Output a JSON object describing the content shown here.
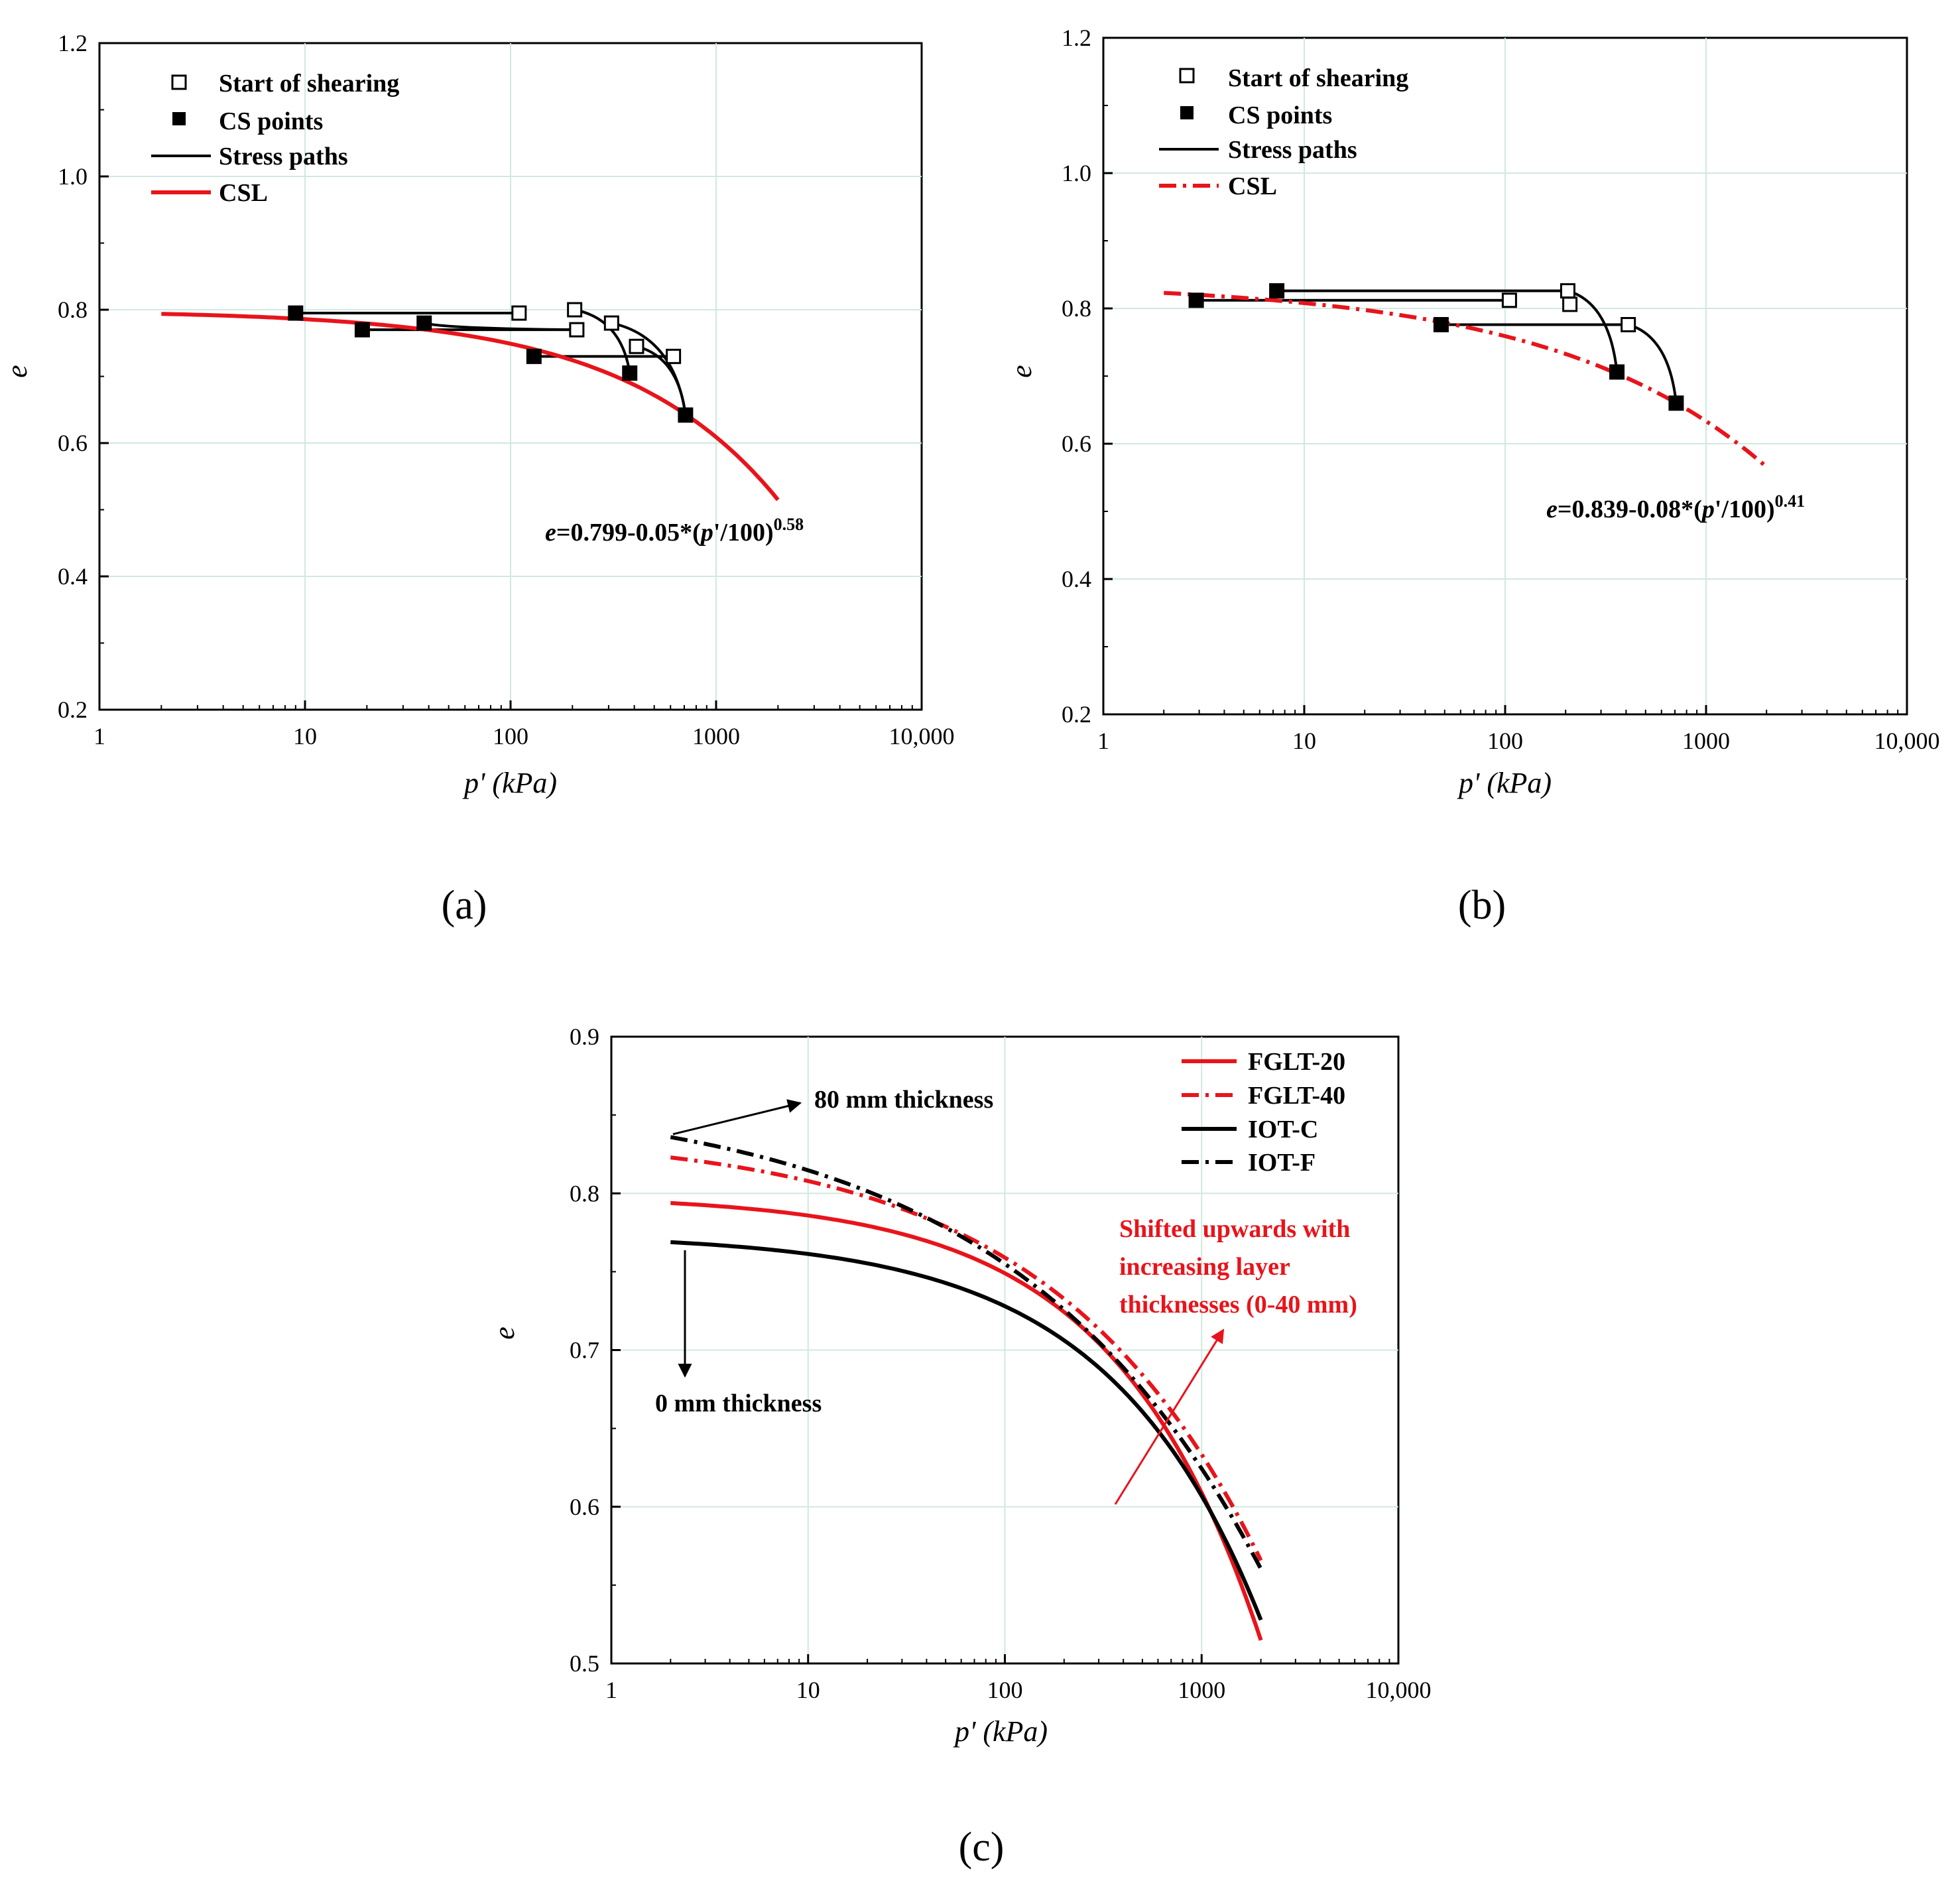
{
  "panels": [
    {
      "id": "a",
      "label": "(a)",
      "x_axis": {
        "label": "p' (kPa)",
        "scale": "log",
        "range": [
          1,
          10000
        ],
        "ticks": [
          1,
          10,
          100,
          1000,
          10000
        ],
        "tick_labels": [
          "1",
          "10",
          "100",
          "1000",
          "10,000"
        ]
      },
      "y_axis": {
        "label": "e",
        "range": [
          0.2,
          1.2
        ],
        "ticks": [
          0.2,
          0.4,
          0.6,
          0.8,
          1.0,
          1.2
        ],
        "tick_labels": [
          "0.2",
          "0.4",
          "0.6",
          "0.8",
          "1.0",
          "1.2"
        ]
      },
      "legend": [
        "Start of shearing",
        "CS points",
        "Stress paths",
        "CSL"
      ],
      "equation": {
        "prefix": "e",
        "body": "=0.799-0.05*(",
        "var": "p",
        "suffix": "'/100)",
        "exponent": "0.58"
      },
      "start_points": [
        [
          110,
          0.795
        ],
        [
          205,
          0.8
        ],
        [
          210,
          0.77
        ],
        [
          310,
          0.78
        ],
        [
          410,
          0.745
        ],
        [
          620,
          0.73
        ]
      ],
      "cs_points": [
        [
          9,
          0.795
        ],
        [
          19,
          0.77
        ],
        [
          38,
          0.78
        ],
        [
          130,
          0.73
        ],
        [
          380,
          0.705
        ],
        [
          710,
          0.642
        ]
      ],
      "csl": {
        "a": 0.799,
        "b": 0.05,
        "n": 0.58,
        "x_range": [
          2,
          2000
        ],
        "color": "#e8141b",
        "style": "solid"
      }
    },
    {
      "id": "b",
      "label": "(b)",
      "x_axis": {
        "label": "p' (kPa)",
        "scale": "log",
        "range": [
          1,
          10000
        ],
        "ticks": [
          1,
          10,
          100,
          1000,
          10000
        ],
        "tick_labels": [
          "1",
          "10",
          "100",
          "1000",
          "10,000"
        ]
      },
      "y_axis": {
        "label": "e",
        "range": [
          0.2,
          1.2
        ],
        "ticks": [
          0.2,
          0.4,
          0.6,
          0.8,
          1.0,
          1.2
        ],
        "tick_labels": [
          "0.2",
          "0.4",
          "0.6",
          "0.8",
          "1.0",
          "1.2"
        ]
      },
      "legend": [
        "Start of shearing",
        "CS points",
        "Stress paths",
        "CSL"
      ],
      "equation": {
        "prefix": "e",
        "body": "=0.839-0.08*(",
        "var": "p",
        "suffix": "'/100)",
        "exponent": "0.41"
      },
      "start_points": [
        [
          105,
          0.812
        ],
        [
          205,
          0.826
        ],
        [
          210,
          0.806
        ],
        [
          410,
          0.776
        ]
      ],
      "cs_points": [
        [
          2.9,
          0.812
        ],
        [
          7.3,
          0.826
        ],
        [
          48,
          0.776
        ],
        [
          360,
          0.706
        ],
        [
          710,
          0.66
        ]
      ],
      "csl": {
        "a": 0.839,
        "b": 0.08,
        "n": 0.41,
        "x_range": [
          2,
          2000
        ],
        "color": "#e8141b",
        "style": "dashdot"
      }
    },
    {
      "id": "c",
      "label": "(c)",
      "x_axis": {
        "label": "p' (kPa)",
        "scale": "log",
        "range": [
          1,
          10000
        ],
        "ticks": [
          1,
          10,
          100,
          1000,
          10000
        ],
        "tick_labels": [
          "1",
          "10",
          "100",
          "1000",
          "10,000"
        ]
      },
      "y_axis": {
        "label": "e",
        "range": [
          0.5,
          0.9
        ],
        "ticks": [
          0.5,
          0.6,
          0.7,
          0.8,
          0.9
        ],
        "tick_labels": [
          "0.5",
          "0.6",
          "0.7",
          "0.8",
          "0.9"
        ]
      },
      "legend": [
        "FGLT-20",
        "FGLT-40",
        "IOT-C",
        "IOT-F"
      ],
      "annotations": [
        "80 mm thickness",
        "0 mm thickness",
        "Shifted upwards with",
        "increasing layer",
        "thicknesses (0-40 mm)"
      ]
    }
  ],
  "chart_data": [
    {
      "type": "scatter",
      "title": "(a)",
      "xlabel": "p' (kPa)",
      "ylabel": "e",
      "xscale": "log",
      "xlim": [
        1,
        10000
      ],
      "ylim": [
        0.2,
        1.2
      ],
      "series": [
        {
          "name": "Start of shearing",
          "marker": "open-square",
          "x": [
            110,
            205,
            210,
            310,
            410,
            620
          ],
          "y": [
            0.795,
            0.8,
            0.77,
            0.78,
            0.745,
            0.73
          ]
        },
        {
          "name": "CS points",
          "marker": "filled-square",
          "x": [
            9,
            19,
            38,
            130,
            380,
            710
          ],
          "y": [
            0.795,
            0.77,
            0.78,
            0.73,
            0.705,
            0.642
          ]
        },
        {
          "name": "Stress paths",
          "style": "solid-black"
        },
        {
          "name": "CSL",
          "equation": "e=0.799-0.05*(p'/100)^0.58",
          "x_range": [
            2,
            2000
          ]
        }
      ]
    },
    {
      "type": "scatter",
      "title": "(b)",
      "xlabel": "p' (kPa)",
      "ylabel": "e",
      "xscale": "log",
      "xlim": [
        1,
        10000
      ],
      "ylim": [
        0.2,
        1.2
      ],
      "series": [
        {
          "name": "Start of shearing",
          "marker": "open-square",
          "x": [
            105,
            205,
            210,
            410
          ],
          "y": [
            0.812,
            0.826,
            0.806,
            0.776
          ]
        },
        {
          "name": "CS points",
          "marker": "filled-square",
          "x": [
            2.9,
            7.3,
            48,
            360,
            710
          ],
          "y": [
            0.812,
            0.826,
            0.776,
            0.706,
            0.66
          ]
        },
        {
          "name": "Stress paths",
          "style": "solid-black"
        },
        {
          "name": "CSL",
          "equation": "e=0.839-0.08*(p'/100)^0.41",
          "x_range": [
            2,
            2000
          ]
        }
      ]
    },
    {
      "type": "line",
      "title": "(c)",
      "xlabel": "p' (kPa)",
      "ylabel": "e",
      "xscale": "log",
      "xlim": [
        1,
        10000
      ],
      "ylim": [
        0.5,
        0.9
      ],
      "series": [
        {
          "name": "FGLT-20",
          "a": 0.799,
          "b": 0.05,
          "n": 0.58,
          "x_range": [
            2,
            2000
          ],
          "color": "#e8141b",
          "style": "solid"
        },
        {
          "name": "FGLT-40",
          "a": 0.839,
          "b": 0.08,
          "n": 0.41,
          "x_range": [
            2,
            2000
          ],
          "color": "#e8141b",
          "style": "dashdot"
        },
        {
          "name": "IOT-C",
          "a": 0.774,
          "b": 0.046,
          "n": 0.56,
          "x_range": [
            2,
            2000
          ],
          "color": "#000000",
          "style": "solid"
        },
        {
          "name": "IOT-F",
          "a": 0.865,
          "b": 0.11,
          "n": 0.34,
          "x_range": [
            2,
            2000
          ],
          "color": "#000000",
          "style": "dashdot"
        }
      ]
    }
  ]
}
